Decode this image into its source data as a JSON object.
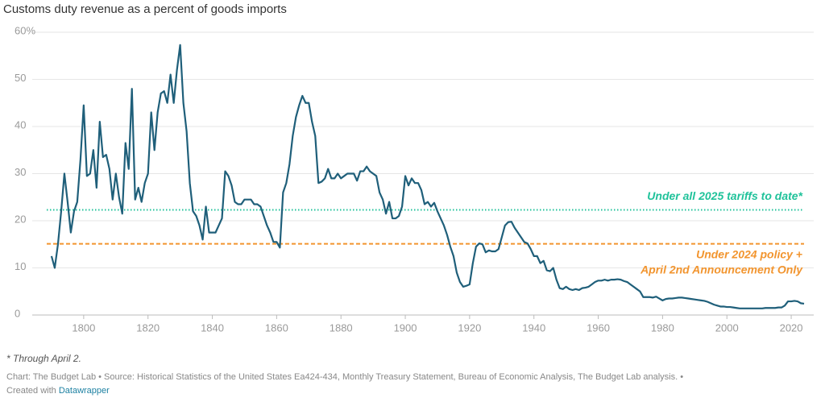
{
  "chart_data": {
    "type": "line",
    "title": "Customs duty revenue as a percent of goods imports",
    "x": [
      1790,
      1791,
      1792,
      1793,
      1794,
      1795,
      1796,
      1797,
      1798,
      1799,
      1800,
      1801,
      1802,
      1803,
      1804,
      1805,
      1806,
      1807,
      1808,
      1809,
      1810,
      1811,
      1812,
      1813,
      1814,
      1815,
      1816,
      1817,
      1818,
      1819,
      1820,
      1821,
      1822,
      1823,
      1824,
      1825,
      1826,
      1827,
      1828,
      1829,
      1830,
      1831,
      1832,
      1833,
      1834,
      1835,
      1836,
      1837,
      1838,
      1839,
      1840,
      1841,
      1842,
      1843,
      1844,
      1845,
      1846,
      1847,
      1848,
      1849,
      1850,
      1851,
      1852,
      1853,
      1854,
      1855,
      1856,
      1857,
      1858,
      1859,
      1860,
      1861,
      1862,
      1863,
      1864,
      1865,
      1866,
      1867,
      1868,
      1869,
      1870,
      1871,
      1872,
      1873,
      1874,
      1875,
      1876,
      1877,
      1878,
      1879,
      1880,
      1881,
      1882,
      1883,
      1884,
      1885,
      1886,
      1887,
      1888,
      1889,
      1890,
      1891,
      1892,
      1893,
      1894,
      1895,
      1896,
      1897,
      1898,
      1899,
      1900,
      1901,
      1902,
      1903,
      1904,
      1905,
      1906,
      1907,
      1908,
      1909,
      1910,
      1911,
      1912,
      1913,
      1914,
      1915,
      1916,
      1917,
      1918,
      1919,
      1920,
      1921,
      1922,
      1923,
      1924,
      1925,
      1926,
      1927,
      1928,
      1929,
      1930,
      1931,
      1932,
      1933,
      1934,
      1935,
      1936,
      1937,
      1938,
      1939,
      1940,
      1941,
      1942,
      1943,
      1944,
      1945,
      1946,
      1947,
      1948,
      1949,
      1950,
      1951,
      1952,
      1953,
      1954,
      1955,
      1956,
      1957,
      1958,
      1959,
      1960,
      1961,
      1962,
      1963,
      1964,
      1965,
      1966,
      1967,
      1968,
      1969,
      1970,
      1971,
      1972,
      1973,
      1974,
      1975,
      1976,
      1977,
      1978,
      1979,
      1980,
      1981,
      1982,
      1983,
      1984,
      1985,
      1986,
      1987,
      1988,
      1989,
      1990,
      1991,
      1992,
      1993,
      1994,
      1995,
      1996,
      1997,
      1998,
      1999,
      2000,
      2001,
      2002,
      2003,
      2004,
      2005,
      2006,
      2007,
      2008,
      2009,
      2010,
      2011,
      2012,
      2013,
      2014,
      2015,
      2016,
      2017,
      2018,
      2019,
      2020,
      2021,
      2022,
      2023,
      2024
    ],
    "values": [
      12.5,
      10,
      15,
      22,
      30,
      24,
      17.5,
      22,
      24,
      33,
      44.5,
      29.5,
      30,
      35,
      27,
      41,
      33.5,
      34,
      31,
      24.5,
      30,
      25,
      21.5,
      36.5,
      31,
      48,
      24.5,
      27,
      24,
      28,
      30,
      43,
      35,
      43,
      47,
      47.5,
      45,
      51,
      45,
      52,
      57.3,
      45,
      39,
      28,
      22,
      21,
      19,
      16,
      23,
      17.5,
      17.5,
      17.5,
      19,
      20.5,
      30.5,
      29.5,
      27.5,
      24,
      23.5,
      23.5,
      24.5,
      24.5,
      24.5,
      23.5,
      23.5,
      23,
      21,
      19,
      17.5,
      15.5,
      15.5,
      14.3,
      26,
      28,
      32,
      38,
      42,
      44.5,
      46.5,
      45,
      45,
      41,
      38,
      28,
      28.3,
      29,
      31,
      29,
      29,
      30,
      29,
      29.5,
      30,
      30,
      30,
      28.5,
      30.5,
      30.5,
      31.5,
      30.5,
      30,
      29.5,
      26,
      24.5,
      21.5,
      24,
      20.5,
      20.5,
      21,
      23,
      29.5,
      27.5,
      29,
      28,
      28,
      26.5,
      23.5,
      24,
      23,
      23.8,
      22,
      20.5,
      19,
      17,
      14.5,
      12.5,
      9,
      7,
      6,
      6.2,
      6.5,
      11,
      14.5,
      15.2,
      15,
      13.3,
      13.7,
      13.5,
      13.5,
      14,
      16.5,
      19,
      19.7,
      19.8,
      18.5,
      17.5,
      16.5,
      15.5,
      15.2,
      14,
      12.5,
      12.5,
      11,
      11.5,
      9.5,
      9.3,
      10,
      7.5,
      5.7,
      5.5,
      6,
      5.5,
      5.3,
      5.5,
      5.3,
      5.7,
      5.8,
      6,
      6.5,
      7,
      7.3,
      7.3,
      7.5,
      7.3,
      7.5,
      7.5,
      7.6,
      7.5,
      7.2,
      7,
      6.5,
      6,
      5.5,
      5,
      3.8,
      3.8,
      3.8,
      3.7,
      3.9,
      3.5,
      3.1,
      3.4,
      3.5,
      3.5,
      3.6,
      3.7,
      3.7,
      3.6,
      3.5,
      3.4,
      3.3,
      3.2,
      3.1,
      3,
      2.8,
      2.5,
      2.2,
      2,
      1.8,
      1.8,
      1.7,
      1.7,
      1.6,
      1.5,
      1.4,
      1.4,
      1.4,
      1.4,
      1.4,
      1.4,
      1.4,
      1.4,
      1.5,
      1.5,
      1.5,
      1.5,
      1.6,
      1.6,
      2,
      2.9,
      2.9,
      3,
      2.9,
      2.5,
      2.4
    ],
    "color": "#1f5f7a",
    "xlim": [
      1784,
      2027
    ],
    "xticks": [
      1800,
      1820,
      1840,
      1860,
      1880,
      1900,
      1920,
      1940,
      1960,
      1980,
      2000,
      2020
    ],
    "ylim": [
      0,
      60
    ],
    "yticks": [
      0,
      10,
      20,
      30,
      40,
      50,
      {
        "value": 60,
        "label": "60%"
      }
    ],
    "grid": true,
    "reference_lines": [
      {
        "value": 22.3,
        "color": "#1fc29a",
        "style": "dotted",
        "labels": [
          "Under all 2025 tariffs to date*"
        ]
      },
      {
        "value": 15.1,
        "color": "#f2952f",
        "style": "dashed",
        "labels": [
          "Under 2024 policy +",
          "April 2nd Announcement Only"
        ]
      }
    ],
    "footnote": "* Through April 2.",
    "source": "Chart: The Budget Lab • Source: Historical Statistics of the United States Ea424-434, Monthly Treasury Statement, Bureau of Economic Analysis, The Budget Lab analysis. •",
    "credit": "Created with",
    "credit_link": "Datawrapper"
  }
}
